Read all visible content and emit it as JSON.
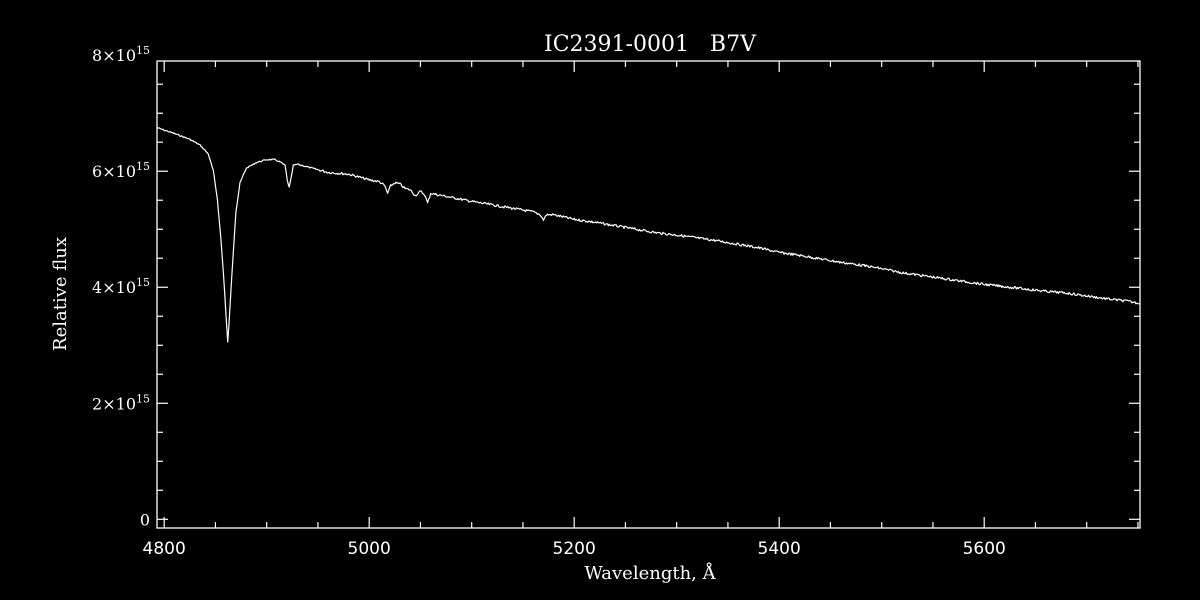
{
  "chart_data": {
    "type": "line",
    "title": "IC2391-0001   B7V",
    "xlabel": "Wavelength, Å",
    "ylabel": "Relative flux",
    "xlim": [
      4793,
      5752
    ],
    "ylim": [
      -150000000000000.0,
      7900000000000000.0
    ],
    "x_ticks": [
      4800,
      5000,
      5200,
      5400,
      5600
    ],
    "x_tick_labels": [
      "4800",
      "5000",
      "5200",
      "5400",
      "5600"
    ],
    "y_ticks": [
      0,
      2000000000000000.0,
      4000000000000000.0,
      6000000000000000.0,
      8000000000000000.0
    ],
    "y_tick_labels": [
      {
        "base": "0",
        "exp": ""
      },
      {
        "base": "2×10",
        "exp": "15"
      },
      {
        "base": "4×10",
        "exp": "15"
      },
      {
        "base": "6×10",
        "exp": "15"
      },
      {
        "base": "8×10",
        "exp": "15"
      }
    ],
    "grid": false,
    "line_color": "#ffffff",
    "background": "#000000",
    "series": [
      {
        "x": [
          4793,
          4810,
          4825,
          4835,
          4843,
          4848,
          4852,
          4855,
          4858,
          4860,
          4862,
          4864,
          4867,
          4870,
          4874,
          4880,
          4890,
          4900,
          4908,
          4914,
          4918,
          4920,
          4922,
          4924,
          4926,
          4930,
          4945,
          4960,
          4980,
          5000,
          5010,
          5015,
          5018,
          5021,
          5025,
          5030,
          5035,
          5040,
          5045,
          5050,
          5054,
          5057,
          5060,
          5065,
          5080,
          5100,
          5120,
          5140,
          5160,
          5167,
          5170,
          5173,
          5180,
          5200,
          5220,
          5240,
          5260,
          5280,
          5300,
          5320,
          5340,
          5360,
          5380,
          5400,
          5420,
          5440,
          5460,
          5480,
          5500,
          5520,
          5540,
          5560,
          5580,
          5600,
          5620,
          5640,
          5660,
          5680,
          5700,
          5720,
          5740,
          5752
        ],
        "y": [
          6750000000000000.0,
          6650000000000000.0,
          6550000000000000.0,
          6450000000000000.0,
          6300000000000000.0,
          6000000000000000.0,
          5500000000000000.0,
          4900000000000000.0,
          4200000000000000.0,
          3600000000000000.0,
          3050000000000000.0,
          3600000000000000.0,
          4500000000000000.0,
          5300000000000000.0,
          5800000000000000.0,
          6050000000000000.0,
          6150000000000000.0,
          6200000000000000.0,
          6200000000000000.0,
          6150000000000000.0,
          6100000000000000.0,
          5850000000000000.0,
          5720000000000000.0,
          5900000000000000.0,
          6100000000000000.0,
          6120000000000000.0,
          6050000000000000.0,
          5980000000000000.0,
          5950000000000000.0,
          5850000000000000.0,
          5820000000000000.0,
          5750000000000000.0,
          5620000000000000.0,
          5750000000000000.0,
          5800000000000000.0,
          5780000000000000.0,
          5700000000000000.0,
          5680000000000000.0,
          5580000000000000.0,
          5650000000000000.0,
          5600000000000000.0,
          5450000000000000.0,
          5620000000000000.0,
          5600000000000000.0,
          5550000000000000.0,
          5480000000000000.0,
          5420000000000000.0,
          5360000000000000.0,
          5300000000000000.0,
          5250000000000000.0,
          5160000000000000.0,
          5250000000000000.0,
          5250000000000000.0,
          5170000000000000.0,
          5120000000000000.0,
          5060000000000000.0,
          5000000000000000.0,
          4940000000000000.0,
          4900000000000000.0,
          4850000000000000.0,
          4800000000000000.0,
          4740000000000000.0,
          4680000000000000.0,
          4600000000000000.0,
          4550000000000000.0,
          4490000000000000.0,
          4430000000000000.0,
          4380000000000000.0,
          4320000000000000.0,
          4250000000000000.0,
          4200000000000000.0,
          4150000000000000.0,
          4100000000000000.0,
          4050000000000000.0,
          4010000000000000.0,
          3970000000000000.0,
          3930000000000000.0,
          3900000000000000.0,
          3850000000000000.0,
          3800000000000000.0,
          3760000000000000.0,
          3720000000000000.0
        ]
      }
    ]
  }
}
